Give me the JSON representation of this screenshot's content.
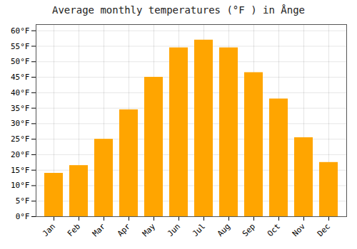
{
  "chart_data": {
    "type": "bar",
    "title": "Average monthly temperatures (°F ) in Ånge",
    "categories": [
      "Jan",
      "Feb",
      "Mar",
      "Apr",
      "May",
      "Jun",
      "Jul",
      "Aug",
      "Sep",
      "Oct",
      "Nov",
      "Dec"
    ],
    "values": [
      14,
      16.5,
      25,
      34.5,
      45,
      54.5,
      57,
      54.5,
      46.5,
      38,
      25.5,
      17.5
    ],
    "color": "#FFA500",
    "ylim": [
      0,
      62
    ],
    "yticks": [
      {
        "value": 0,
        "label": "0°F"
      },
      {
        "value": 5,
        "label": "5°F"
      },
      {
        "value": 10,
        "label": "10°F"
      },
      {
        "value": 15,
        "label": "15°F"
      },
      {
        "value": 20,
        "label": "20°F"
      },
      {
        "value": 25,
        "label": "25°F"
      },
      {
        "value": 30,
        "label": "30°F"
      },
      {
        "value": 35,
        "label": "35°F"
      },
      {
        "value": 40,
        "label": "40°F"
      },
      {
        "value": 45,
        "label": "45°F"
      },
      {
        "value": 50,
        "label": "50°F"
      },
      {
        "value": 55,
        "label": "55°F"
      },
      {
        "value": 60,
        "label": "60°F"
      }
    ],
    "grid": true
  }
}
